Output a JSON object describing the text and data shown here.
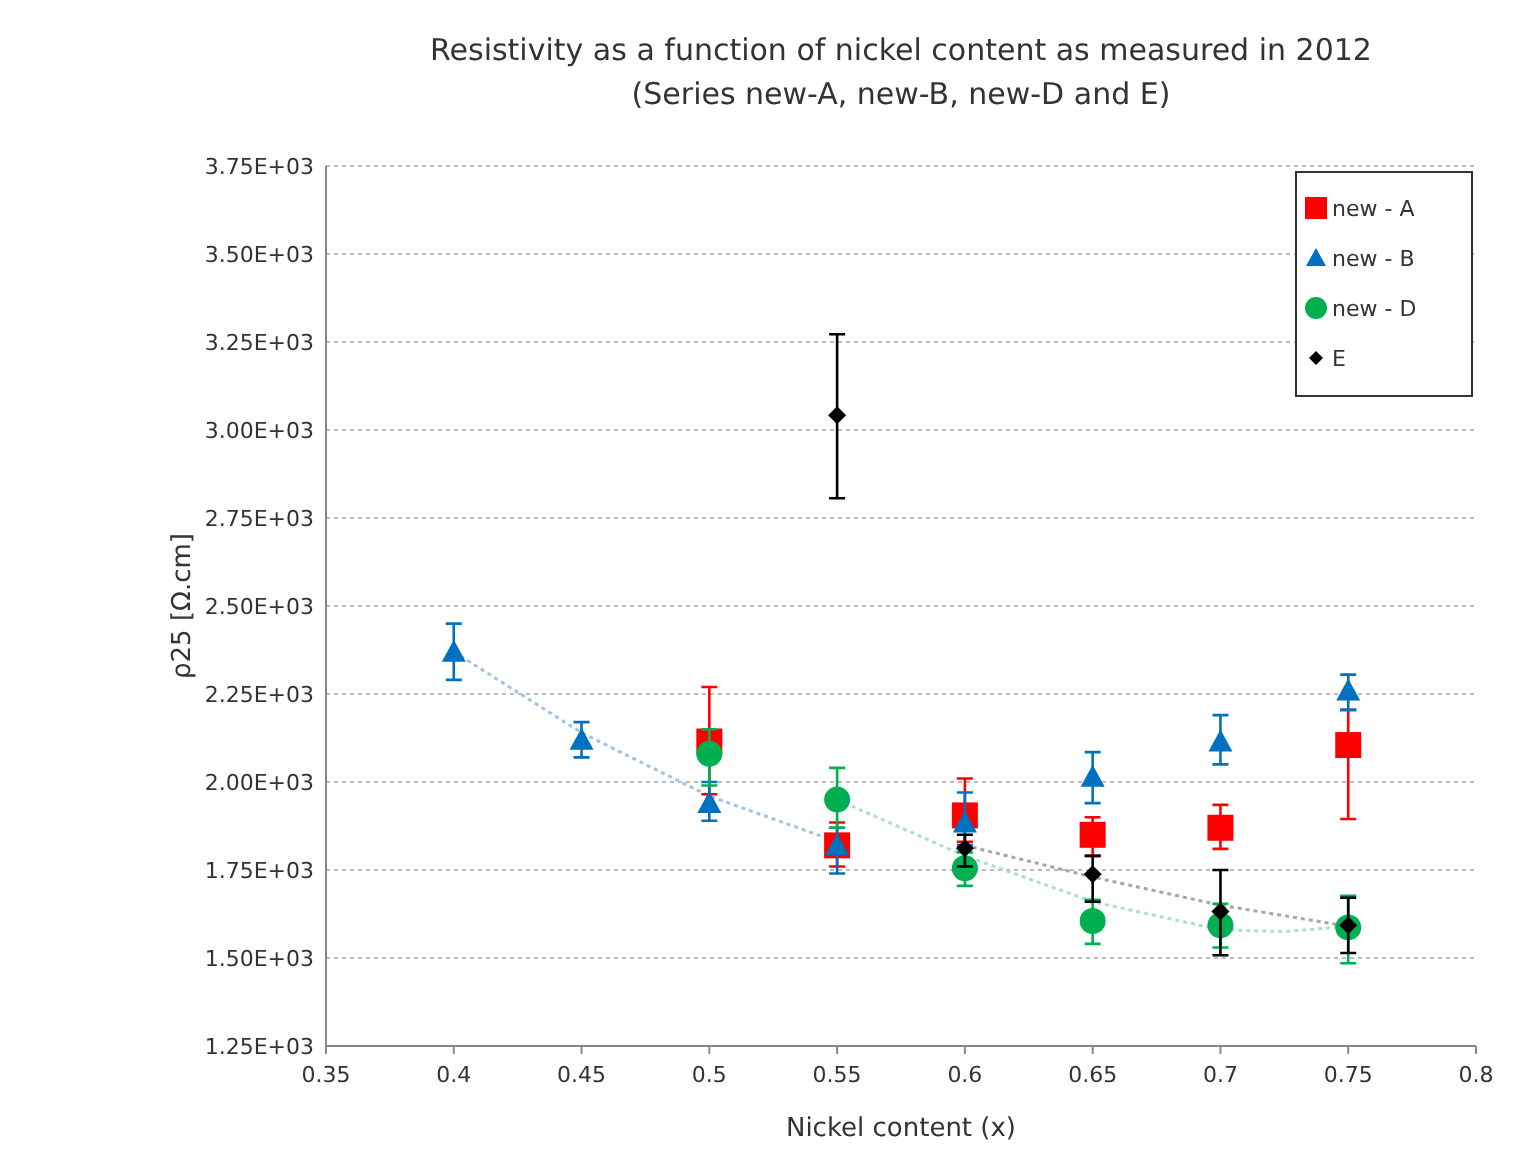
{
  "chart_data": {
    "type": "scatter",
    "title": "Resistivity as a function of nickel content as measured in 2012",
    "subtitle": "(Series new-A, new-B, new-D and E)",
    "xlabel": "Nickel content (x)",
    "ylabel": "ρ25 [Ω.cm]",
    "xlim": [
      0.35,
      0.8
    ],
    "xticks": [
      0.35,
      0.4,
      0.45,
      0.5,
      0.55,
      0.6,
      0.65,
      0.7,
      0.75,
      0.8
    ],
    "ylim": [
      1250,
      3750
    ],
    "yticks": [
      {
        "value": 1250,
        "label": "1.25E+03"
      },
      {
        "value": 1500,
        "label": "1.50E+03"
      },
      {
        "value": 1750,
        "label": "1.75E+03"
      },
      {
        "value": 2000,
        "label": "2.00E+03"
      },
      {
        "value": 2250,
        "label": "2.25E+03"
      },
      {
        "value": 2500,
        "label": "2.50E+03"
      },
      {
        "value": 2750,
        "label": "2.75E+03"
      },
      {
        "value": 3000,
        "label": "3.00E+03"
      },
      {
        "value": 3250,
        "label": "3.25E+03"
      },
      {
        "value": 3500,
        "label": "3.50E+03"
      },
      {
        "value": 3750,
        "label": "3.75E+03"
      }
    ],
    "grid": "y",
    "legend": "top right",
    "series": [
      {
        "type": "line",
        "color": "#9dc3e6",
        "line_style": "dotted",
        "marker": "none",
        "x": [
          0.4,
          0.45,
          0.5,
          0.55
        ],
        "values": [
          2370,
          2140,
          1960,
          1830
        ]
      },
      {
        "type": "line",
        "color": "#a9e2c0",
        "line_style": "dotted",
        "marker": "none",
        "x": [
          0.55,
          0.6,
          0.65,
          0.7,
          0.725,
          0.75
        ],
        "values": [
          1950,
          1790,
          1660,
          1580,
          1575,
          1590
        ]
      },
      {
        "type": "line",
        "color": "#a6a6a6",
        "line_style": "dotted",
        "marker": "none",
        "x": [
          0.6,
          0.65,
          0.7,
          0.75
        ],
        "values": [
          1820,
          1730,
          1650,
          1590
        ]
      },
      {
        "name": "new - A",
        "color": "#ff0000",
        "marker": "square",
        "x": [
          0.5,
          0.55,
          0.6,
          0.65,
          0.7,
          0.75
        ],
        "values": [
          2115,
          1820,
          1905,
          1850,
          1870,
          2105
        ],
        "errors": [
          [
            1965,
            2270
          ],
          [
            1760,
            1885
          ],
          [
            1830,
            2010
          ],
          [
            1790,
            1900
          ],
          [
            1810,
            1935
          ],
          [
            1895,
            2205
          ]
        ]
      },
      {
        "name": "new - B",
        "color": "#0070c0",
        "marker": "triangle",
        "x": [
          0.4,
          0.45,
          0.5,
          0.55,
          0.6,
          0.65,
          0.7,
          0.75
        ],
        "values": [
          2370,
          2120,
          1940,
          1820,
          1885,
          2015,
          2115,
          2260
        ],
        "errors": [
          [
            2290,
            2450
          ],
          [
            2070,
            2170
          ],
          [
            1890,
            2000
          ],
          [
            1740,
            1870
          ],
          [
            1820,
            1970
          ],
          [
            1940,
            2085
          ],
          [
            2050,
            2190
          ],
          [
            2205,
            2305
          ]
        ]
      },
      {
        "name": "new - D",
        "color": "#00b050",
        "marker": "circle",
        "x": [
          0.5,
          0.55,
          0.6,
          0.65,
          0.7,
          0.75
        ],
        "values": [
          2080,
          1950,
          1755,
          1605,
          1593,
          1587
        ],
        "errors": [
          [
            1990,
            2150
          ],
          [
            1870,
            2040
          ],
          [
            1705,
            1800
          ],
          [
            1540,
            1665
          ],
          [
            1530,
            1654
          ],
          [
            1485,
            1677
          ]
        ]
      },
      {
        "name": "E",
        "color": "#000000",
        "marker": "diamond",
        "x": [
          0.55,
          0.6,
          0.65,
          0.7,
          0.75
        ],
        "values": [
          3042,
          1812,
          1738,
          1632,
          1593
        ],
        "errors": [
          [
            2806,
            3272
          ],
          [
            1760,
            1850
          ],
          [
            1660,
            1790
          ],
          [
            1508,
            1750
          ],
          [
            1514,
            1671
          ]
        ]
      }
    ]
  }
}
